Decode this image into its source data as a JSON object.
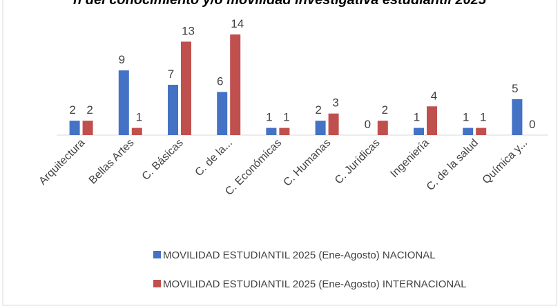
{
  "chart_data": {
    "type": "bar",
    "title": "n del conocimiento y/o movilidad investigativa estudiantil 2025",
    "categories": [
      "Arquitectura",
      "Bellas Artes",
      "C. Básicas",
      "C. de la...",
      "C. Económicas",
      "C. Humanas",
      "C. Jurídicas",
      "Ingeniería",
      "C. de la salud",
      "Química y..."
    ],
    "series": [
      {
        "name": "MOVILIDAD ESTUDIANTIL 2025 (Ene-Agosto) NACIONAL",
        "color": "#4472c4",
        "values": [
          2,
          9,
          7,
          6,
          1,
          2,
          0,
          1,
          1,
          5
        ]
      },
      {
        "name": "MOVILIDAD ESTUDIANTIL 2025 (Ene-Agosto) INTERNACIONAL",
        "color": "#c0504d",
        "values": [
          2,
          1,
          13,
          14,
          1,
          3,
          2,
          4,
          1,
          0
        ]
      }
    ],
    "legend": "bottom"
  }
}
